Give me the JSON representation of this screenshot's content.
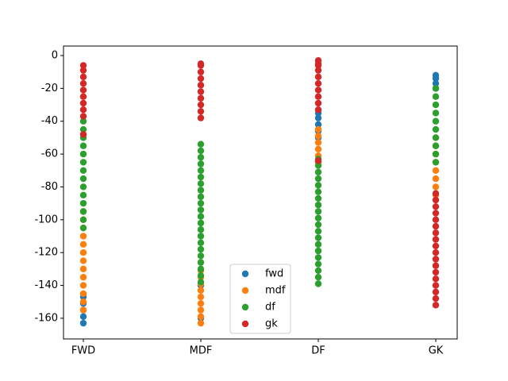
{
  "chart_data": {
    "type": "scatter",
    "categories": [
      "FWD",
      "MDF",
      "DF",
      "GK"
    ],
    "ylim": [
      -172.6,
      5.8
    ],
    "yticks": [
      0,
      -20,
      -40,
      -60,
      -80,
      -100,
      -120,
      -140,
      -160
    ],
    "legend": "lower center",
    "series": [
      {
        "name": "fwd",
        "color": "#1f77b4",
        "x": [
          "FWD",
          "FWD",
          "FWD",
          "FWD",
          "FWD",
          "MDF",
          "MDF",
          "DF",
          "DF",
          "DF",
          "DF",
          "DF",
          "GK",
          "GK",
          "GK",
          "GK"
        ],
        "values": [
          -163,
          -159,
          -155,
          -151,
          -147,
          -160,
          -140,
          -50,
          -46,
          -42,
          -38,
          -35,
          -12,
          -14,
          -17,
          -20
        ]
      },
      {
        "name": "mdf",
        "color": "#ff7f0e",
        "x": [
          "FWD",
          "FWD",
          "FWD",
          "FWD",
          "FWD",
          "FWD",
          "FWD",
          "FWD",
          "FWD",
          "FWD",
          "FWD",
          "FWD",
          "FWD",
          "MDF",
          "MDF",
          "MDF",
          "MDF",
          "MDF",
          "MDF",
          "MDF",
          "MDF",
          "MDF",
          "DF",
          "DF",
          "DF",
          "DF",
          "DF",
          "DF",
          "GK",
          "GK",
          "GK",
          "GK",
          "GK",
          "GK",
          "GK",
          "GK"
        ],
        "values": [
          -155,
          -150,
          -145,
          -140,
          -135,
          -130,
          -125,
          -120,
          -115,
          -110,
          -105,
          -100,
          -95,
          -163,
          -159,
          -155,
          -151,
          -147,
          -143,
          -139,
          -135,
          -131,
          -65,
          -61,
          -57,
          -53,
          -49,
          -45,
          -85,
          -80,
          -75,
          -70,
          -65,
          -60,
          -55,
          -50
        ]
      },
      {
        "name": "df",
        "color": "#2ca02c",
        "x": [
          "FWD",
          "FWD",
          "FWD",
          "FWD",
          "FWD",
          "FWD",
          "FWD",
          "FWD",
          "FWD",
          "FWD",
          "FWD",
          "FWD",
          "FWD",
          "FWD",
          "MDF",
          "MDF",
          "MDF",
          "MDF",
          "MDF",
          "MDF",
          "MDF",
          "MDF",
          "MDF",
          "MDF",
          "MDF",
          "MDF",
          "MDF",
          "MDF",
          "MDF",
          "MDF",
          "MDF",
          "MDF",
          "MDF",
          "MDF",
          "MDF",
          "MDF",
          "DF",
          "DF",
          "DF",
          "DF",
          "DF",
          "DF",
          "DF",
          "DF",
          "DF",
          "DF",
          "DF",
          "DF",
          "DF",
          "DF",
          "DF",
          "DF",
          "DF",
          "DF",
          "DF",
          "DF",
          "GK",
          "GK",
          "GK",
          "GK",
          "GK",
          "GK",
          "GK",
          "GK",
          "GK",
          "GK"
        ],
        "values": [
          -105,
          -100,
          -95,
          -90,
          -85,
          -80,
          -75,
          -70,
          -65,
          -60,
          -55,
          -50,
          -45,
          -40,
          -138,
          -134,
          -130,
          -126,
          -122,
          -118,
          -114,
          -110,
          -106,
          -102,
          -98,
          -94,
          -90,
          -86,
          -82,
          -78,
          -74,
          -70,
          -66,
          -62,
          -58,
          -54,
          -139,
          -135,
          -131,
          -127,
          -123,
          -119,
          -115,
          -111,
          -107,
          -103,
          -99,
          -95,
          -91,
          -87,
          -83,
          -79,
          -75,
          -71,
          -67,
          -63,
          -65,
          -60,
          -55,
          -50,
          -45,
          -40,
          -35,
          -30,
          -25,
          -20
        ]
      },
      {
        "name": "gk",
        "color": "#d62728",
        "x": [
          "FWD",
          "FWD",
          "FWD",
          "FWD",
          "FWD",
          "FWD",
          "FWD",
          "FWD",
          "FWD",
          "FWD",
          "MDF",
          "MDF",
          "MDF",
          "MDF",
          "MDF",
          "MDF",
          "MDF",
          "MDF",
          "MDF",
          "MDF",
          "DF",
          "DF",
          "DF",
          "DF",
          "DF",
          "DF",
          "DF",
          "DF",
          "DF",
          "DF",
          "DF",
          "GK",
          "GK",
          "GK",
          "GK",
          "GK",
          "GK",
          "GK",
          "GK",
          "GK",
          "GK",
          "GK",
          "GK",
          "GK",
          "GK",
          "GK",
          "GK",
          "GK",
          "GK"
        ],
        "values": [
          -48,
          -37,
          -33,
          -29,
          -25,
          -21,
          -17,
          -13,
          -9,
          -6,
          -38,
          -34,
          -30,
          -26,
          -22,
          -18,
          -14,
          -10,
          -6,
          -5,
          -64,
          -33,
          -29,
          -25,
          -21,
          -17,
          -13,
          -9,
          -6,
          -5,
          -3,
          -152,
          -148,
          -144,
          -140,
          -136,
          -132,
          -128,
          -124,
          -120,
          -116,
          -112,
          -108,
          -104,
          -100,
          -96,
          -92,
          -88,
          -84
        ]
      }
    ]
  }
}
